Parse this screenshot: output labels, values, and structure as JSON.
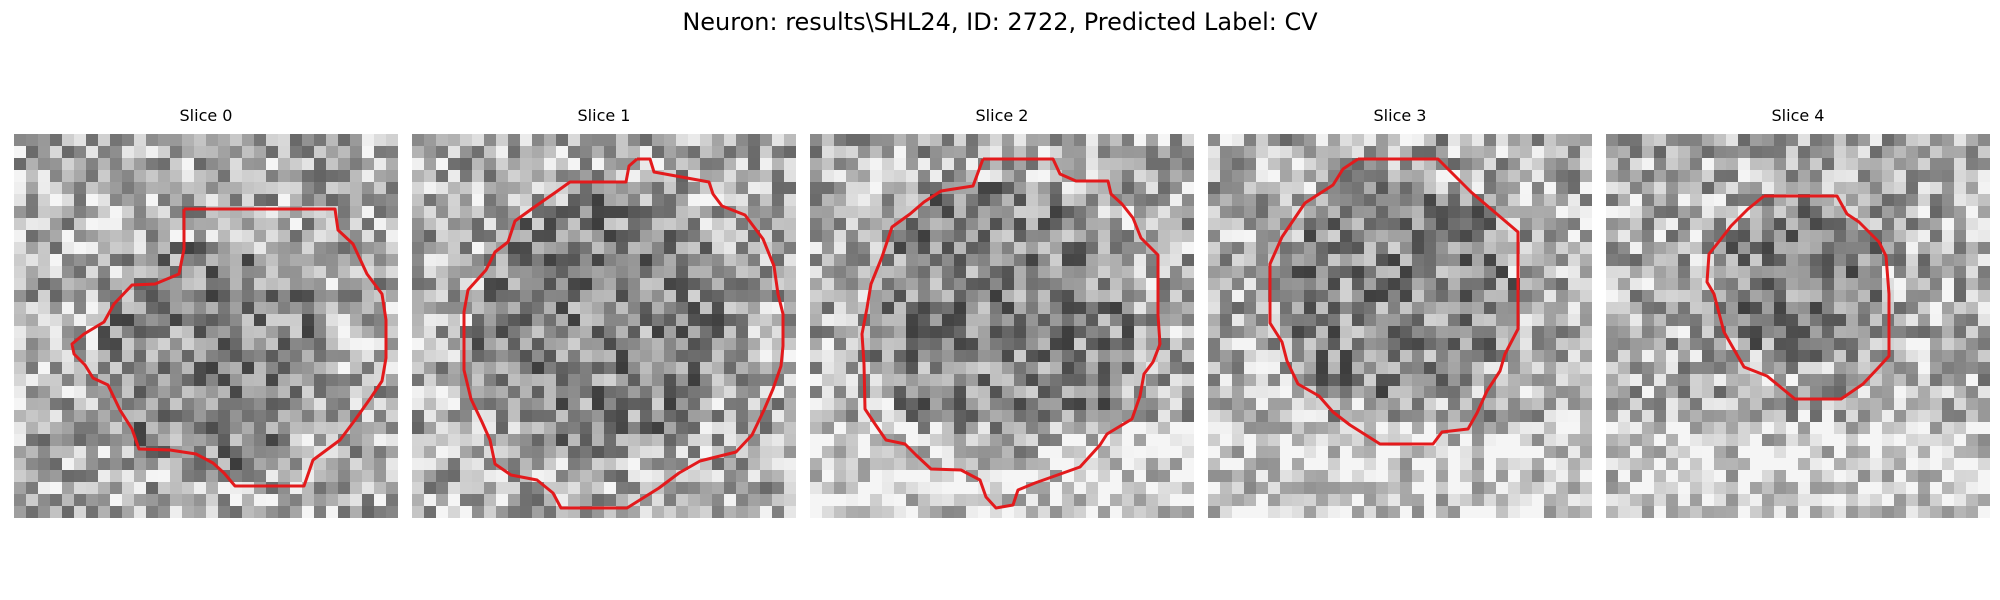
{
  "figure": {
    "title": "Neuron: results\\SHL24, ID: 2722, Predicted Label: CV"
  },
  "panels": [
    {
      "title": "Slice 0",
      "seed": 11,
      "dark_center": [
        0.52,
        0.58
      ],
      "dark_radius": 0.3
    },
    {
      "title": "Slice 1",
      "seed": 23,
      "dark_center": [
        0.5,
        0.5
      ],
      "dark_radius": 0.34
    },
    {
      "title": "Slice 2",
      "seed": 37,
      "dark_center": [
        0.5,
        0.48
      ],
      "dark_radius": 0.36
    },
    {
      "title": "Slice 3",
      "seed": 41,
      "dark_center": [
        0.5,
        0.42
      ],
      "dark_radius": 0.3
    },
    {
      "title": "Slice 4",
      "seed": 53,
      "dark_center": [
        0.5,
        0.38
      ],
      "dark_radius": 0.22
    }
  ],
  "colors": {
    "contour": "#e31a1c",
    "cmap": "gray"
  }
}
